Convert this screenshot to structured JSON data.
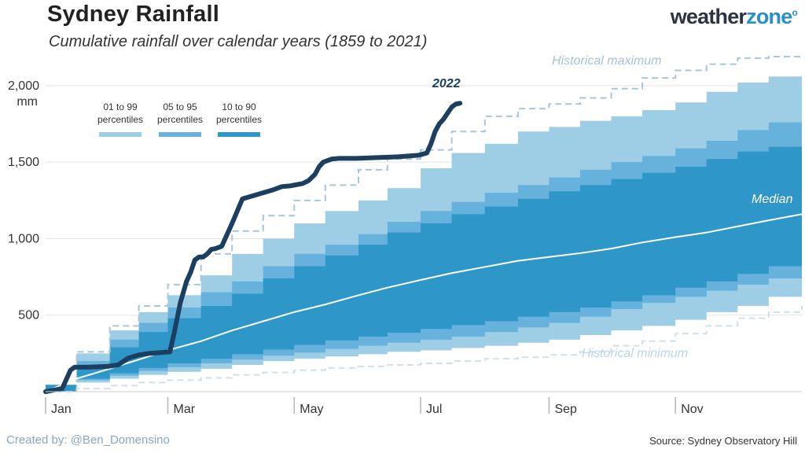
{
  "header": {
    "title": "Sydney Rainfall",
    "subtitle": "Cumulative rainfall over calendar years (1859 to 2021)"
  },
  "logo": {
    "part1": "weather",
    "part2": "zone",
    "mark": "o"
  },
  "footer": {
    "credit": "Created by: @Ben_Domensino",
    "source": "Source: Sydney Observatory Hill"
  },
  "colors": {
    "band_01_99": "#9ecde6",
    "band_05_95": "#66b2dc",
    "band_10_90": "#2f96c8",
    "median": "#ffffff",
    "line_2022": "#1c3f5f",
    "historical": "#a9c6d8",
    "grid": "#e3e3e3"
  },
  "chart_data": {
    "type": "area",
    "ylim": [
      0,
      2200
    ],
    "y_ticks": [
      {
        "value": 500,
        "label": "500"
      },
      {
        "value": 1000,
        "label": "1,000"
      },
      {
        "value": 1500,
        "label": "1,500"
      },
      {
        "value": 2000,
        "label": "2,000"
      }
    ],
    "y_unit_label": "mm",
    "x_ticks": [
      {
        "day": 0,
        "label": "Jan"
      },
      {
        "day": 59,
        "label": "Mar"
      },
      {
        "day": 120,
        "label": "May"
      },
      {
        "day": 181,
        "label": "Jul"
      },
      {
        "day": 243,
        "label": "Sep"
      },
      {
        "day": 304,
        "label": "Nov"
      }
    ],
    "legend": [
      {
        "label": "01 to 99",
        "label2": "percentiles",
        "color": "#9ecde6"
      },
      {
        "label": "05 to 95",
        "label2": "percentiles",
        "color": "#66b2dc"
      },
      {
        "label": "10 to 90",
        "label2": "percentiles",
        "color": "#2f96c8"
      }
    ],
    "annotations": {
      "hist_max": "Historical maximum",
      "hist_min": "Historical minimum",
      "median": "Median",
      "year2022": "2022"
    },
    "day_points": [
      0,
      15,
      31,
      45,
      59,
      75,
      90,
      105,
      120,
      135,
      151,
      165,
      181,
      196,
      212,
      228,
      243,
      258,
      273,
      288,
      304,
      319,
      334,
      349,
      365
    ],
    "series": [
      {
        "name": "p01",
        "values": [
          0,
          30,
          60,
          85,
          110,
          130,
          150,
          175,
          200,
          215,
          230,
          245,
          260,
          270,
          285,
          300,
          320,
          340,
          370,
          400,
          430,
          470,
          520,
          560,
          620
        ]
      },
      {
        "name": "p05",
        "values": [
          0,
          40,
          75,
          105,
          135,
          160,
          185,
          210,
          235,
          255,
          280,
          300,
          320,
          340,
          360,
          390,
          420,
          450,
          490,
          540,
          580,
          620,
          660,
          700,
          740
        ]
      },
      {
        "name": "p10",
        "values": [
          0,
          45,
          85,
          120,
          155,
          185,
          215,
          245,
          275,
          305,
          335,
          360,
          385,
          410,
          435,
          460,
          490,
          520,
          550,
          590,
          630,
          680,
          720,
          770,
          820
        ]
      },
      {
        "name": "median",
        "values": [
          0,
          85,
          150,
          210,
          270,
          330,
          400,
          460,
          520,
          570,
          630,
          680,
          730,
          775,
          815,
          855,
          880,
          905,
          935,
          975,
          1010,
          1040,
          1080,
          1120,
          1160
        ]
      },
      {
        "name": "p90",
        "values": [
          0,
          160,
          290,
          390,
          480,
          560,
          640,
          740,
          820,
          890,
          960,
          1040,
          1100,
          1160,
          1210,
          1260,
          1310,
          1350,
          1390,
          1430,
          1470,
          1520,
          1570,
          1600,
          1620
        ]
      },
      {
        "name": "p95",
        "values": [
          0,
          200,
          340,
          450,
          550,
          650,
          720,
          820,
          900,
          960,
          1030,
          1110,
          1180,
          1240,
          1300,
          1350,
          1400,
          1450,
          1500,
          1540,
          1590,
          1640,
          1710,
          1760,
          1800
        ]
      },
      {
        "name": "p99",
        "values": [
          0,
          250,
          400,
          520,
          630,
          760,
          900,
          1000,
          1100,
          1180,
          1250,
          1330,
          1460,
          1560,
          1620,
          1700,
          1730,
          1770,
          1800,
          1840,
          1890,
          1960,
          2020,
          2060,
          2080
        ]
      },
      {
        "name": "hist_max",
        "values": [
          0,
          260,
          430,
          560,
          700,
          900,
          1050,
          1150,
          1250,
          1350,
          1450,
          1520,
          1580,
          1700,
          1800,
          1850,
          1880,
          1920,
          1980,
          2050,
          2100,
          2140,
          2180,
          2190,
          2200
        ]
      },
      {
        "name": "hist_min",
        "values": [
          0,
          20,
          40,
          60,
          75,
          90,
          110,
          125,
          140,
          155,
          165,
          175,
          185,
          200,
          215,
          225,
          240,
          260,
          300,
          330,
          380,
          430,
          480,
          520,
          560
        ]
      }
    ],
    "series_2022": {
      "name": "2022",
      "x": [
        0,
        4,
        8,
        10,
        12,
        14,
        20,
        30,
        35,
        40,
        45,
        50,
        55,
        60,
        62,
        65,
        68,
        70,
        72,
        74,
        76,
        78,
        80,
        82,
        85,
        90,
        95,
        100,
        105,
        110,
        114,
        118,
        120,
        124,
        127,
        130,
        132,
        134,
        138,
        142,
        150,
        160,
        170,
        180,
        184,
        186,
        188,
        190,
        192,
        194,
        196,
        198,
        200
      ],
      "y": [
        0,
        10,
        20,
        80,
        140,
        160,
        160,
        165,
        175,
        220,
        240,
        250,
        255,
        260,
        380,
        580,
        720,
        780,
        860,
        880,
        880,
        900,
        930,
        935,
        950,
        1100,
        1260,
        1280,
        1300,
        1320,
        1340,
        1345,
        1350,
        1360,
        1380,
        1420,
        1470,
        1500,
        1520,
        1525,
        1525,
        1530,
        1535,
        1545,
        1560,
        1620,
        1700,
        1750,
        1780,
        1820,
        1860,
        1880,
        1885
      ]
    }
  }
}
